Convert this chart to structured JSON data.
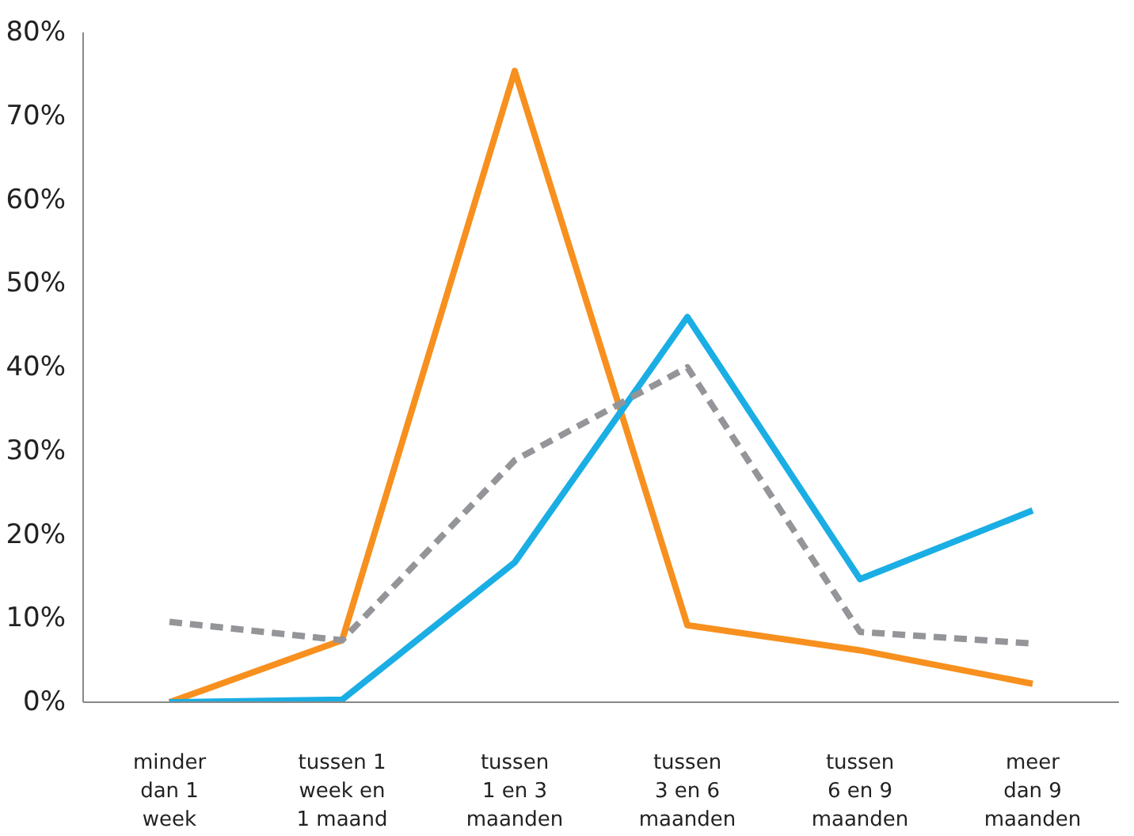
{
  "chart_data": {
    "type": "line",
    "categories": [
      "minder\ndan 1\nweek",
      "tussen 1\nweek en\n1 maand",
      "tussen\n1 en 3\nmaanden",
      "tussen\n3 en 6\nmaanden",
      "tussen\n6 en 9\nmaanden",
      "meer\ndan 9\nmaanden"
    ],
    "series": [
      {
        "color": "#f7901e",
        "line_style": "solid",
        "values": [
          0,
          7.4,
          75.4,
          9.2,
          6.2,
          2.2
        ]
      },
      {
        "color": "#1aaee4",
        "line_style": "solid",
        "values": [
          0,
          0.3,
          16.7,
          46,
          14.7,
          22.9
        ]
      },
      {
        "color": "#939598",
        "line_style": "dashed",
        "values": [
          9.6,
          7.4,
          28.9,
          40,
          8.4,
          7.0
        ]
      }
    ],
    "ylim": [
      0,
      80
    ],
    "yticks": [
      {
        "value": 0,
        "label": "0%"
      },
      {
        "value": 10,
        "label": "10%"
      },
      {
        "value": 20,
        "label": "20%"
      },
      {
        "value": 30,
        "label": "30%"
      },
      {
        "value": 40,
        "label": "40%"
      },
      {
        "value": 50,
        "label": "50%"
      },
      {
        "value": 60,
        "label": "60%"
      },
      {
        "value": 70,
        "label": "70%"
      },
      {
        "value": 80,
        "label": "80%"
      }
    ],
    "grid": false,
    "marker": "none"
  }
}
